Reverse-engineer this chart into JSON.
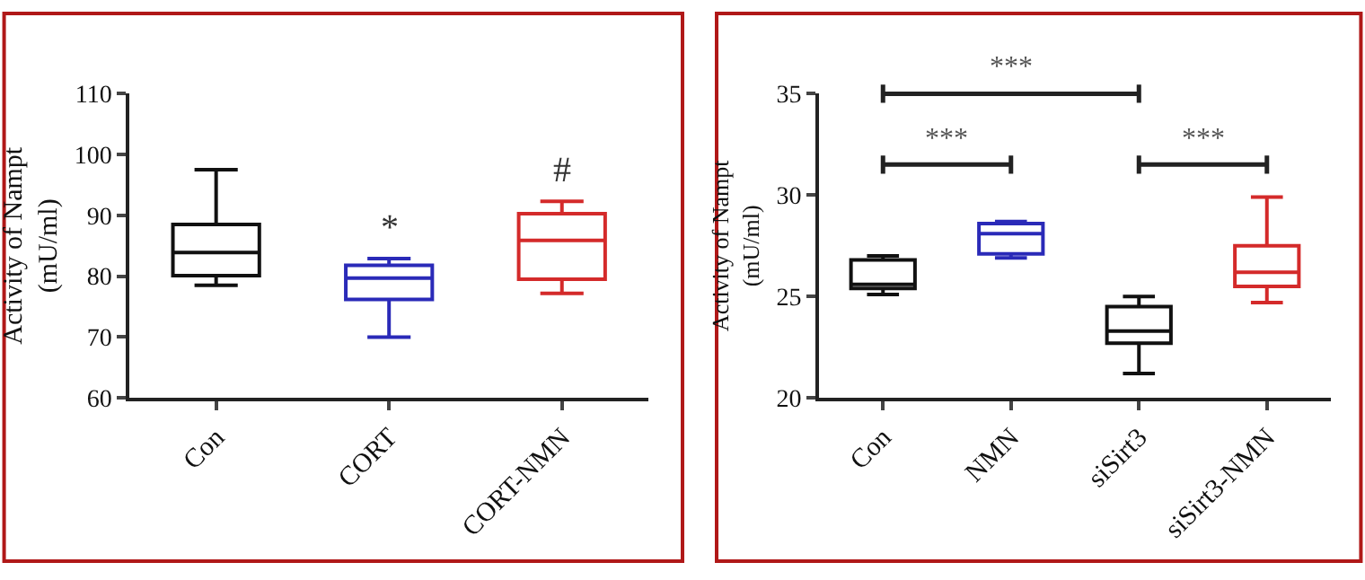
{
  "chart_data": [
    {
      "type": "box",
      "ylabel": "Activity of Nampt\n(mU/ml)",
      "categories": [
        "Con",
        "CORT",
        "CORT-NMN"
      ],
      "colors": [
        "#111111",
        "#2a2ab8",
        "#d42a2a"
      ],
      "boxes": [
        {
          "low": 78.5,
          "q1": 80.1,
          "median": 83.9,
          "q3": 88.5,
          "high": 97.5
        },
        {
          "low": 70,
          "q1": 76.2,
          "median": 79.7,
          "q3": 81.8,
          "high": 82.9
        },
        {
          "low": 77.2,
          "q1": 79.5,
          "median": 85.9,
          "q3": 90.3,
          "high": 92.3
        }
      ],
      "ylim": [
        60,
        110
      ],
      "yticks": [
        60,
        70,
        80,
        90,
        100,
        110
      ],
      "annotations": [
        {
          "text": "*",
          "x": "CORT",
          "y": 82.9
        },
        {
          "text": "#",
          "x": "CORT-NMN",
          "y": 92.3
        }
      ]
    },
    {
      "type": "box",
      "ylabel": "Activity of Nampt\n(mU/ml)",
      "categories": [
        "Con",
        "NMN",
        "siSirt3",
        "siSirt3-NMN"
      ],
      "colors": [
        "#111111",
        "#2a2ab8",
        "#111111",
        "#d42a2a"
      ],
      "boxes": [
        {
          "low": 25.1,
          "q1": 25.4,
          "median": 25.6,
          "q3": 26.8,
          "high": 27
        },
        {
          "low": 26.9,
          "q1": 27.1,
          "median": 28.1,
          "q3": 28.6,
          "high": 28.7
        },
        {
          "low": 21.2,
          "q1": 22.7,
          "median": 23.3,
          "q3": 24.5,
          "high": 25
        },
        {
          "low": 24.7,
          "q1": 25.5,
          "median": 26.2,
          "q3": 27.5,
          "high": 29.9
        }
      ],
      "ylim": [
        20,
        35
      ],
      "yticks": [
        20,
        25,
        30,
        35
      ],
      "annotations": [
        "***",
        "***",
        "***"
      ]
    }
  ]
}
